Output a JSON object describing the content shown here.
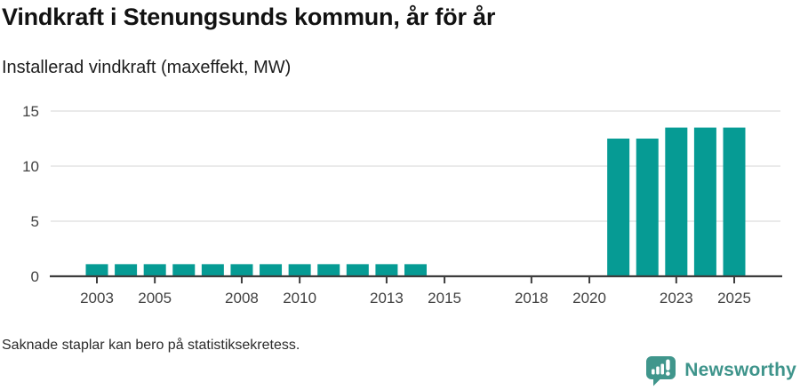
{
  "header": {
    "title": "Vindkraft i Stenungsunds kommun, år för år",
    "subtitle": "Installerad vindkraft (maxeffekt, MW)"
  },
  "chart_data": {
    "type": "bar",
    "title": "Vindkraft i Stenungsunds kommun, år för år",
    "subtitle": "Installerad vindkraft (maxeffekt, MW)",
    "xlabel": "",
    "ylabel": "Installerad vindkraft (maxeffekt, MW)",
    "categories": [
      2003,
      2004,
      2005,
      2006,
      2007,
      2008,
      2009,
      2010,
      2011,
      2012,
      2013,
      2014,
      2015,
      2016,
      2017,
      2018,
      2019,
      2020,
      2021,
      2022,
      2023,
      2024,
      2025
    ],
    "values": [
      1.1,
      1.1,
      1.1,
      1.1,
      1.1,
      1.1,
      1.1,
      1.1,
      1.1,
      1.1,
      1.1,
      1.1,
      null,
      null,
      null,
      null,
      null,
      null,
      12.5,
      12.5,
      13.5,
      13.5,
      13.5
    ],
    "ylim": [
      0,
      15
    ],
    "yticks": [
      0,
      5,
      10,
      15
    ],
    "xticks": [
      2003,
      2005,
      2008,
      2010,
      2013,
      2015,
      2018,
      2020,
      2023,
      2025
    ],
    "grid": "horizontal",
    "legend": "none",
    "missing_note": "Saknade staplar kan bero på statistiksekretess."
  },
  "colors": {
    "bar": "#069b94",
    "grid": "#e3e3e3",
    "axis": "#3d3d3d",
    "tick_label": "#424242",
    "brand": "#3e948b",
    "brand_icon_bg": "#40968c",
    "brand_icon_glyph": "#ffffff"
  },
  "footer": {
    "note": "Saknade staplar kan bero på statistiksekretess.",
    "brand": "Newsworthy"
  }
}
